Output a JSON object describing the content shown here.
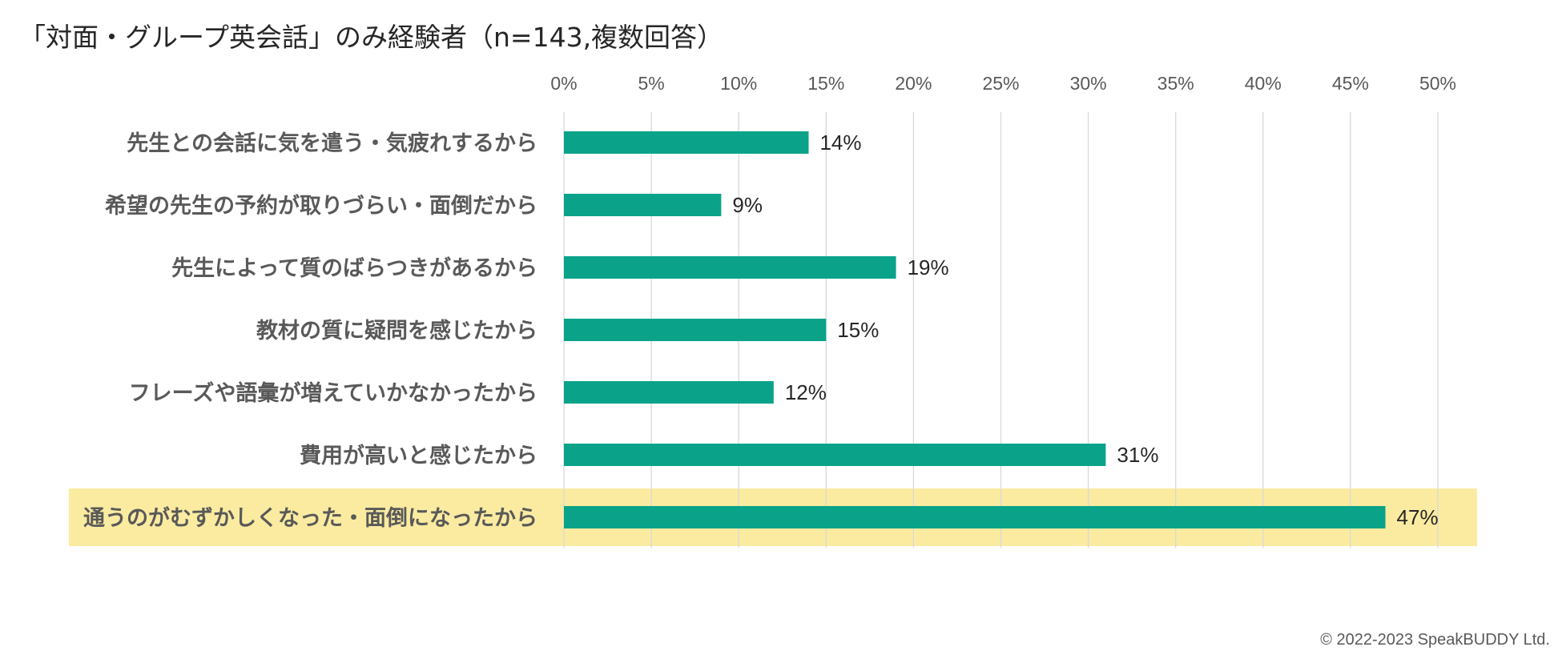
{
  "title": "「対面・グループ英会話」のみ経験者（n=143,複数回答）",
  "copyright": "© 2022-2023 SpeakBUDDY Ltd.",
  "colors": {
    "bar": "#0aa38a",
    "highlight": "#fbeba0",
    "grid": "#d9d9d9",
    "text": "#262626",
    "label": "#595959"
  },
  "chart_data": {
    "type": "bar",
    "orientation": "horizontal",
    "categories": [
      "先生との会話に気を遣う・気疲れするから",
      "希望の先生の予約が取りづらい・面倒だから",
      "先生によって質のばらつきがあるから",
      "教材の質に疑問を感じたから",
      "フレーズや語彙が増えていかなかったから",
      "費用が高いと感じたから",
      "通うのがむずかしくなった・面倒になったから"
    ],
    "values": [
      14,
      9,
      19,
      15,
      12,
      31,
      47
    ],
    "data_labels": [
      "14%",
      "9%",
      "19%",
      "15%",
      "12%",
      "31%",
      "47%"
    ],
    "x_ticks": [
      "0%",
      "5%",
      "10%",
      "15%",
      "20%",
      "25%",
      "30%",
      "35%",
      "40%",
      "45%",
      "50%"
    ],
    "xlim": [
      0,
      50
    ],
    "x_tick_step": 5,
    "x_axis_position": "top",
    "grid": true,
    "highlighted_category_index": 6,
    "legend": "none"
  }
}
